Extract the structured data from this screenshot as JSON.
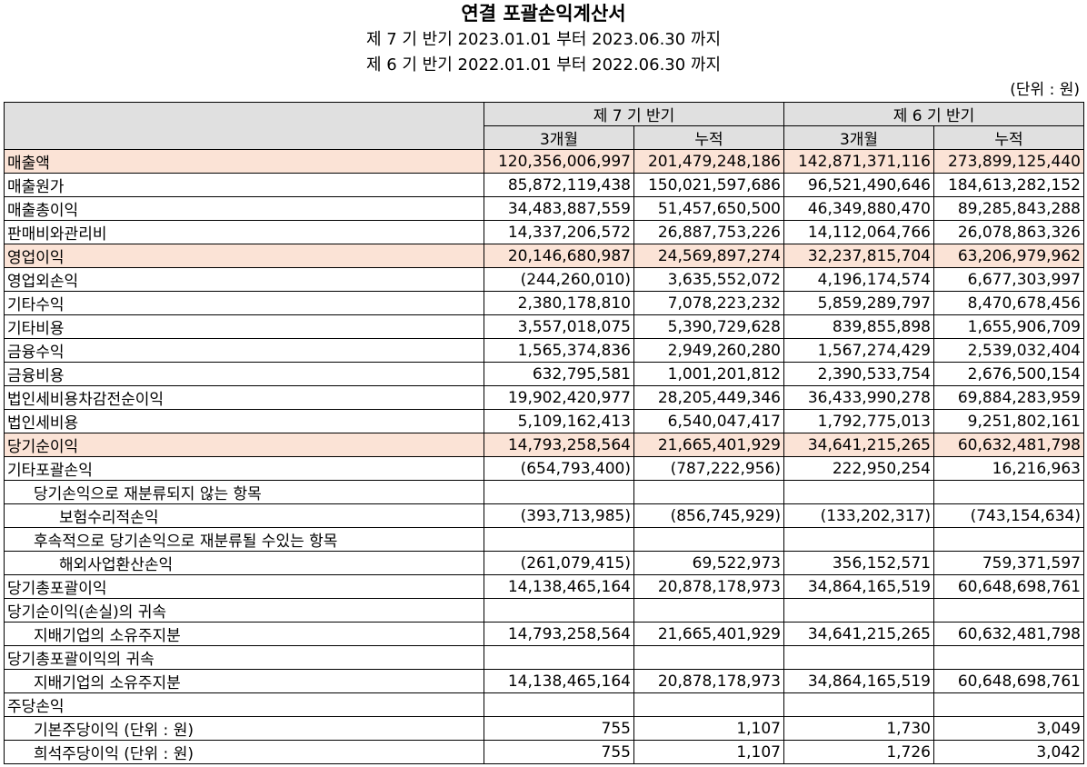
{
  "title": "연결 포괄손익계산서",
  "period_current": "제 7 기 반기 2023.01.01 부터 2023.06.30 까지",
  "period_prior": "제 6 기 반기 2022.01.01 부터 2022.06.30 까지",
  "unit": "(단위 : 원)",
  "head": {
    "current": "제 7 기 반기",
    "prior": "제 6 기 반기",
    "three_month": "3개월",
    "cumulative": "누적"
  },
  "rows": [
    {
      "label": "매출액",
      "values": [
        "120,356,006,997",
        "201,479,248,186",
        "142,871,371,116",
        "273,899,125,440"
      ]
    },
    {
      "label": "매출원가",
      "values": [
        "85,872,119,438",
        "150,021,597,686",
        "96,521,490,646",
        "184,613,282,152"
      ]
    },
    {
      "label": "매출총이익",
      "values": [
        "34,483,887,559",
        "51,457,650,500",
        "46,349,880,470",
        "89,285,843,288"
      ]
    },
    {
      "label": "판매비와관리비",
      "values": [
        "14,337,206,572",
        "26,887,753,226",
        "14,112,064,766",
        "26,078,863,326"
      ]
    },
    {
      "label": "영업이익",
      "values": [
        "20,146,680,987",
        "24,569,897,274",
        "32,237,815,704",
        "63,206,979,962"
      ]
    },
    {
      "label": "영업외손익",
      "values": [
        "(244,260,010)",
        "3,635,552,072",
        "4,196,174,574",
        "6,677,303,997"
      ]
    },
    {
      "label": "기타수익",
      "values": [
        "2,380,178,810",
        "7,078,223,232",
        "5,859,289,797",
        "8,470,678,456"
      ]
    },
    {
      "label": "기타비용",
      "values": [
        "3,557,018,075",
        "5,390,729,628",
        "839,855,898",
        "1,655,906,709"
      ]
    },
    {
      "label": "금융수익",
      "values": [
        "1,565,374,836",
        "2,949,260,280",
        "1,567,274,429",
        "2,539,032,404"
      ]
    },
    {
      "label": "금융비용",
      "values": [
        "632,795,581",
        "1,001,201,812",
        "2,390,533,754",
        "2,676,500,154"
      ]
    },
    {
      "label": "법인세비용차감전순이익",
      "values": [
        "19,902,420,977",
        "28,205,449,346",
        "36,433,990,278",
        "69,884,283,959"
      ]
    },
    {
      "label": "법인세비용",
      "values": [
        "5,109,162,413",
        "6,540,047,417",
        "1,792,775,013",
        "9,251,802,161"
      ]
    },
    {
      "label": "당기순이익",
      "values": [
        "14,793,258,564",
        "21,665,401,929",
        "34,641,215,265",
        "60,632,481,798"
      ]
    },
    {
      "label": "기타포괄손익",
      "values": [
        "(654,793,400)",
        "(787,222,956)",
        "222,950,254",
        "16,216,963"
      ]
    },
    {
      "label": "당기손익으로 재분류되지 않는 항목",
      "values": [
        "",
        "",
        "",
        ""
      ]
    },
    {
      "label": "보험수리적손익",
      "values": [
        "(393,713,985)",
        "(856,745,929)",
        "(133,202,317)",
        "(743,154,634)"
      ]
    },
    {
      "label": "후속적으로 당기손익으로 재분류될 수있는 항목",
      "values": [
        "",
        "",
        "",
        ""
      ]
    },
    {
      "label": "해외사업환산손익",
      "values": [
        "(261,079,415)",
        "69,522,973",
        "356,152,571",
        "759,371,597"
      ]
    },
    {
      "label": "당기총포괄이익",
      "values": [
        "14,138,465,164",
        "20,878,178,973",
        "34,864,165,519",
        "60,648,698,761"
      ]
    },
    {
      "label": "당기순이익(손실)의 귀속",
      "values": [
        "",
        "",
        "",
        ""
      ]
    },
    {
      "label": "지배기업의 소유주지분",
      "values": [
        "14,793,258,564",
        "21,665,401,929",
        "34,641,215,265",
        "60,632,481,798"
      ]
    },
    {
      "label": "당기총포괄이익의 귀속",
      "values": [
        "",
        "",
        "",
        ""
      ]
    },
    {
      "label": "지배기업의 소유주지분",
      "values": [
        "14,138,465,164",
        "20,878,178,973",
        "34,864,165,519",
        "60,648,698,761"
      ]
    },
    {
      "label": "주당손익",
      "values": [
        "",
        "",
        "",
        ""
      ]
    },
    {
      "label": "기본주당이익 (단위 : 원)",
      "values": [
        "755",
        "1,107",
        "1,730",
        "3,049"
      ]
    },
    {
      "label": "희석주당이익 (단위 : 원)",
      "values": [
        "755",
        "1,107",
        "1,726",
        "3,042"
      ]
    }
  ],
  "highlight_color": "#fbe3d6"
}
